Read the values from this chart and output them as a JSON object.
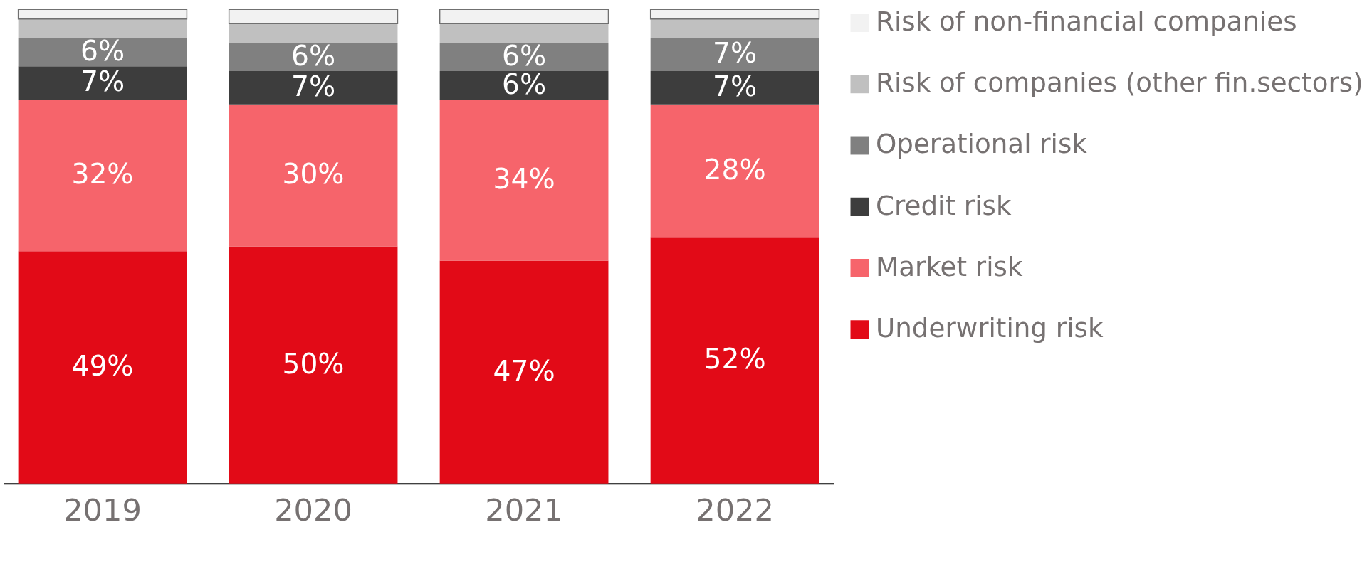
{
  "chart_data": {
    "type": "bar",
    "stacked": true,
    "legend": "right",
    "grid": false,
    "tick_labels": "x",
    "categories": [
      "2019",
      "2020",
      "2021",
      "2022"
    ],
    "series": [
      {
        "name": "Underwriting risk",
        "color": "#e20a17",
        "values": [
          49,
          50,
          47,
          52
        ],
        "value_labels": [
          "49%",
          "50%",
          "47%",
          "52%"
        ]
      },
      {
        "name": "Market risk",
        "color": "#f6646b",
        "values": [
          32,
          30,
          34,
          28
        ],
        "value_labels": [
          "32%",
          "30%",
          "34%",
          "28%"
        ]
      },
      {
        "name": "Credit risk",
        "color": "#3d3d3d",
        "values": [
          7,
          7,
          6,
          7
        ],
        "value_labels": [
          "7%",
          "7%",
          "6%",
          "7%"
        ]
      },
      {
        "name": "Operational risk",
        "color": "#808080",
        "values": [
          6,
          6,
          6,
          7
        ],
        "value_labels": [
          "6%",
          "6%",
          "6%",
          "7%"
        ]
      },
      {
        "name": "Risk of companies (other fin.sectors)",
        "color": "#c0c0c0",
        "values": [
          4,
          4,
          4,
          4
        ],
        "value_labels": [
          null,
          null,
          null,
          null
        ]
      },
      {
        "name": "Risk of non-financial companies",
        "color": "#f2f2f2",
        "values": [
          2,
          3,
          3,
          2
        ],
        "value_labels": [
          null,
          null,
          null,
          null
        ]
      }
    ]
  }
}
